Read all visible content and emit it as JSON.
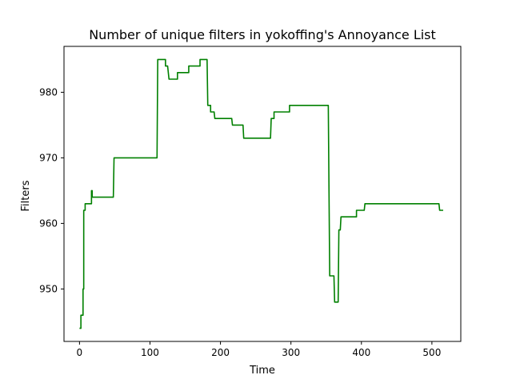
{
  "chart_data": {
    "type": "line",
    "title": "Number of unique filters in yokoffing's Annoyance List",
    "xlabel": "Time",
    "ylabel": "Filters",
    "xlim": [
      -22,
      541
    ],
    "ylim": [
      942,
      987
    ],
    "grid": false,
    "x_ticks": [
      0,
      100,
      200,
      300,
      400,
      500
    ],
    "y_ticks": [
      950,
      960,
      970,
      980
    ],
    "series": [
      {
        "color": "#008000",
        "points": [
          [
            0,
            944
          ],
          [
            2,
            944
          ],
          [
            2,
            946
          ],
          [
            5,
            946
          ],
          [
            5,
            950
          ],
          [
            6,
            950
          ],
          [
            6,
            962
          ],
          [
            8,
            962
          ],
          [
            8,
            963
          ],
          [
            17,
            963
          ],
          [
            17,
            965
          ],
          [
            18,
            965
          ],
          [
            18,
            964
          ],
          [
            20,
            964
          ],
          [
            20,
            964
          ],
          [
            48,
            964
          ],
          [
            49,
            970
          ],
          [
            110,
            970
          ],
          [
            111,
            985
          ],
          [
            122,
            985
          ],
          [
            122,
            984
          ],
          [
            125,
            984
          ],
          [
            127,
            982
          ],
          [
            139,
            982
          ],
          [
            139,
            983
          ],
          [
            155,
            983
          ],
          [
            155,
            984
          ],
          [
            171,
            984
          ],
          [
            171,
            985
          ],
          [
            181,
            985
          ],
          [
            182,
            978
          ],
          [
            186,
            978
          ],
          [
            186,
            977
          ],
          [
            191,
            977
          ],
          [
            192,
            976
          ],
          [
            216,
            976
          ],
          [
            217,
            975
          ],
          [
            232,
            975
          ],
          [
            233,
            973
          ],
          [
            271,
            973
          ],
          [
            272,
            976
          ],
          [
            276,
            976
          ],
          [
            276,
            977
          ],
          [
            298,
            977
          ],
          [
            298,
            978
          ],
          [
            353,
            978
          ],
          [
            355,
            952
          ],
          [
            361,
            952
          ],
          [
            362,
            948
          ],
          [
            367,
            948
          ],
          [
            368,
            959
          ],
          [
            370,
            959
          ],
          [
            371,
            961
          ],
          [
            393,
            961
          ],
          [
            393,
            962
          ],
          [
            404,
            962
          ],
          [
            405,
            963
          ],
          [
            510,
            963
          ],
          [
            511,
            962
          ],
          [
            516,
            962
          ]
        ]
      }
    ]
  }
}
